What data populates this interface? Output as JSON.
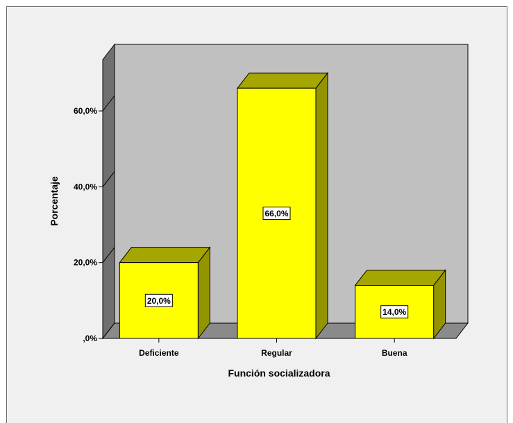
{
  "chart_data": {
    "type": "bar",
    "categories": [
      "Deficiente",
      "Regular",
      "Buena"
    ],
    "values": [
      20.0,
      66.0,
      14.0
    ],
    "data_labels": [
      "20,0%",
      "66,0%",
      "14,0%"
    ],
    "title": "",
    "xlabel": "Función socializadora",
    "ylabel": "Porcentaje",
    "ylim": [
      0,
      70
    ],
    "yticks": [
      0,
      20,
      40,
      60
    ],
    "ytick_labels": [
      ",0%",
      "20,0%",
      "40,0%",
      "60,0%"
    ],
    "grid": false,
    "style": "3d",
    "colors": {
      "bar_front": "#ffff00",
      "bar_top": "#a6a600",
      "bar_side": "#949400",
      "back_wall": "#c0c0c0",
      "floor": "#8a8a8a",
      "side_wall": "#707070",
      "frame_background": "#f0f0f0"
    }
  }
}
